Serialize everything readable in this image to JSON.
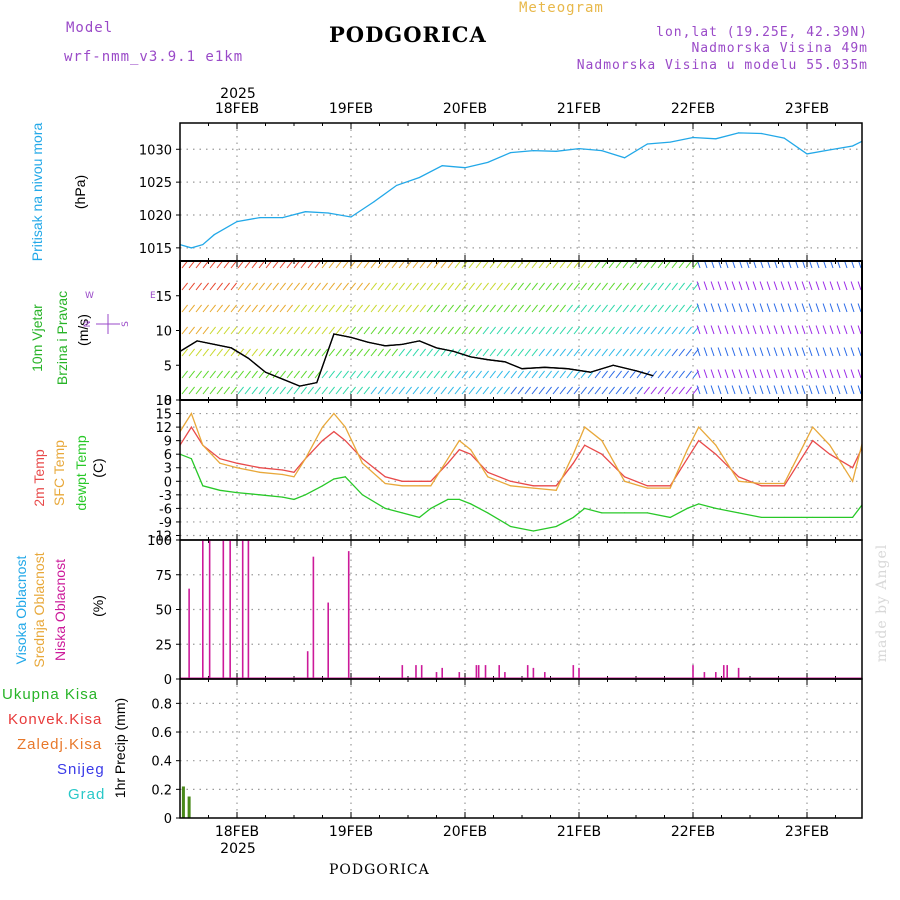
{
  "header": {
    "model_label": "Model",
    "model_name": "wrf-nmm_v3.9.1 e1km",
    "station": "PODGORICA",
    "meteogram": "Meteogram",
    "lonlat": "lon,lat (19.25E, 42.39N)",
    "elevation": "Nadmorska Visina 49m",
    "model_elevation": "Nadmorska Visina u modelu 55.035m",
    "footer_station": "PODGORICA",
    "watermark": "made by Angel"
  },
  "colors": {
    "pressure": "#22a8e8",
    "temp2m": "#e84a4a",
    "sfc_temp": "#e8a83a",
    "dewpt": "#28c828",
    "cloud": "#cc1a9a",
    "precip": "#4a8a1a",
    "model_label": "#9a4ac8"
  },
  "axis": {
    "year": "2025",
    "days": [
      "18FEB",
      "19FEB",
      "20FEB",
      "21FEB",
      "22FEB",
      "23FEB"
    ]
  },
  "panels": {
    "pressure": {
      "label1": "Pritisak na nivou mora",
      "unit": "(hPa)",
      "ticks": [
        "1030",
        "1025",
        "1020",
        "1015"
      ]
    },
    "wind": {
      "label1": "10m Vjetar",
      "label2": "Brzina i Pravac",
      "unit": "(m/s)",
      "ticks": [
        "15",
        "10",
        "5",
        "0"
      ],
      "compass": "N W E S"
    },
    "temp": {
      "label1": "2m Temp",
      "label2": "SFC Temp",
      "label3": "dewpt Temp",
      "unit": "(C)",
      "ticks": [
        "18",
        "15",
        "12",
        "9",
        "6",
        "3",
        "0",
        "-3",
        "-6",
        "-9",
        "-12"
      ]
    },
    "cloud": {
      "label1": "Visoka Oblacnost",
      "label2": "Srednja Oblacnost",
      "label3": "Niska Oblacnost",
      "unit": "(%)",
      "ticks": [
        "100",
        "75",
        "50",
        "25",
        "0"
      ]
    },
    "precip": {
      "label": "1hr Precip (mm)",
      "ticks": [
        "0.8",
        "0.6",
        "0.4",
        "0.2",
        "0"
      ],
      "legend": [
        "Ukupna Kisa",
        "Konvek.Kisa",
        "Zaledj.Kisa",
        "Snijeg",
        "Grad"
      ],
      "legend_colors": [
        "#28b428",
        "#e83a3a",
        "#e8782a",
        "#3a3ae8",
        "#28c8c8"
      ]
    }
  },
  "chart_data": [
    {
      "type": "line",
      "title": "Pritisak na nivou mora",
      "ylabel": "(hPa)",
      "ylim": [
        1013,
        1034
      ],
      "x_unit": "days from 17FEB 12:00",
      "x": [
        0,
        0.1,
        0.2,
        0.3,
        0.5,
        0.7,
        0.9,
        1.1,
        1.3,
        1.5,
        1.7,
        1.9,
        2.1,
        2.3,
        2.5,
        2.7,
        2.9,
        3.1,
        3.3,
        3.5,
        3.7,
        3.9,
        4.1,
        4.3,
        4.5,
        4.7,
        4.9,
        5.1,
        5.3,
        5.5,
        5.7,
        5.9,
        6.05
      ],
      "series": [
        {
          "name": "SLP",
          "values": [
            1015.5,
            1015,
            1015.5,
            1017,
            1019,
            1019.6,
            1019.6,
            1020.5,
            1020.3,
            1019.7,
            1022,
            1024.5,
            1025.7,
            1027.5,
            1027.2,
            1028,
            1029.5,
            1029.8,
            1029.7,
            1030.1,
            1029.8,
            1028.7,
            1030.8,
            1031.1,
            1031.8,
            1031.6,
            1032.5,
            1032.4,
            1031.7,
            1029.3,
            1029.9,
            1030.5,
            1031.8
          ]
        }
      ]
    },
    {
      "type": "line",
      "title": "10m Vjetar Brzina i Pravac",
      "ylabel": "(m/s)",
      "ylim": [
        0,
        20
      ],
      "x_unit": "days from 17FEB 12:00",
      "x": [
        0,
        0.15,
        0.3,
        0.45,
        0.6,
        0.75,
        0.9,
        1.05,
        1.2,
        1.35,
        1.5,
        1.65,
        1.8,
        1.95,
        2.1,
        2.25,
        2.4,
        2.55,
        2.7,
        2.85,
        3.0,
        3.2,
        3.4,
        3.6,
        3.8,
        4.0,
        4.15
      ],
      "series": [
        {
          "name": "speed",
          "values": [
            7,
            8.5,
            8,
            7.5,
            6,
            4,
            3,
            2,
            2.5,
            9.5,
            9,
            8.3,
            7.8,
            8,
            8.5,
            7.5,
            7,
            6.2,
            5.8,
            5.5,
            4.5,
            4.7,
            4.5,
            4,
            5,
            4.2,
            3.5
          ]
        }
      ]
    },
    {
      "type": "line",
      "title": "Temperature",
      "ylabel": "(C)",
      "ylim": [
        -13,
        18
      ],
      "x_unit": "days from 17FEB 12:00",
      "x": [
        0,
        0.1,
        0.2,
        0.35,
        0.5,
        0.7,
        0.9,
        1.0,
        1.1,
        1.25,
        1.35,
        1.45,
        1.6,
        1.8,
        1.95,
        2.1,
        2.2,
        2.35,
        2.45,
        2.55,
        2.7,
        2.9,
        3.1,
        3.3,
        3.45,
        3.55,
        3.7,
        3.9,
        4.1,
        4.3,
        4.45,
        4.55,
        4.7,
        4.9,
        5.1,
        5.3,
        5.45,
        5.55,
        5.7,
        5.9,
        6.05
      ],
      "series": [
        {
          "name": "2m Temp",
          "values": [
            8,
            12,
            8,
            5,
            4,
            3,
            2.5,
            2,
            5,
            9,
            11,
            9,
            5,
            1,
            0,
            0,
            0,
            4,
            7,
            6,
            2,
            0,
            -1,
            -1,
            4,
            8,
            6,
            1,
            -1,
            -1,
            5,
            9,
            6,
            1,
            -1,
            -1,
            5,
            9,
            6,
            3,
            11
          ]
        },
        {
          "name": "SFC Temp",
          "values": [
            11,
            15,
            8,
            4,
            3,
            2,
            1.5,
            1,
            5,
            12,
            15,
            12,
            4,
            -0.5,
            -1,
            -1,
            -1,
            5,
            9,
            7,
            1,
            -1,
            -1.5,
            -2,
            6,
            12,
            9,
            0,
            -1.5,
            -1.5,
            7,
            12,
            8,
            0,
            -0.5,
            -0.5,
            7,
            12,
            8,
            0,
            15
          ]
        },
        {
          "name": "dewpt Temp",
          "values": [
            6,
            5,
            -1,
            -2,
            -2.5,
            -3,
            -3.5,
            -4,
            -3,
            -1,
            0.5,
            1,
            -3,
            -6,
            -7,
            -8,
            -6,
            -4,
            -4,
            -5,
            -7,
            -10,
            -11,
            -10,
            -8,
            -6,
            -7,
            -7,
            -7,
            -8,
            -6,
            -5,
            -6,
            -7,
            -8,
            -8,
            -8,
            -8,
            -8,
            -8,
            -3
          ]
        }
      ]
    },
    {
      "type": "bar",
      "title": "Oblacnost",
      "ylabel": "(%)",
      "ylim": [
        0,
        100
      ],
      "x_unit": "days from 17FEB 12:00",
      "series": [
        {
          "name": "Niska Oblacnost",
          "x": [
            0.08,
            0.2,
            0.26,
            0.38,
            0.44,
            0.55,
            0.6,
            1.12,
            1.17,
            1.3,
            1.48,
            1.95,
            2.07,
            2.12,
            2.25,
            2.3,
            2.45,
            2.6,
            2.62,
            2.68,
            2.8,
            2.85,
            3.05,
            3.1,
            3.2,
            3.45,
            3.5,
            4.5,
            4.6,
            4.7,
            4.77,
            4.8,
            4.9
          ],
          "values": [
            65,
            100,
            100,
            100,
            100,
            100,
            100,
            20,
            88,
            55,
            92,
            10,
            10,
            10,
            5,
            8,
            5,
            10,
            10,
            10,
            10,
            5,
            10,
            8,
            5,
            10,
            8,
            10,
            5,
            5,
            10,
            10,
            8
          ]
        }
      ]
    },
    {
      "type": "bar",
      "title": "1hr Precip",
      "ylabel": "(mm)",
      "ylim": [
        0,
        0.97
      ],
      "x_unit": "days from 17FEB 12:00",
      "series": [
        {
          "name": "Ukupna Kisa",
          "x": [
            0.03,
            0.08
          ],
          "values": [
            0.22,
            0.15
          ]
        }
      ]
    }
  ]
}
